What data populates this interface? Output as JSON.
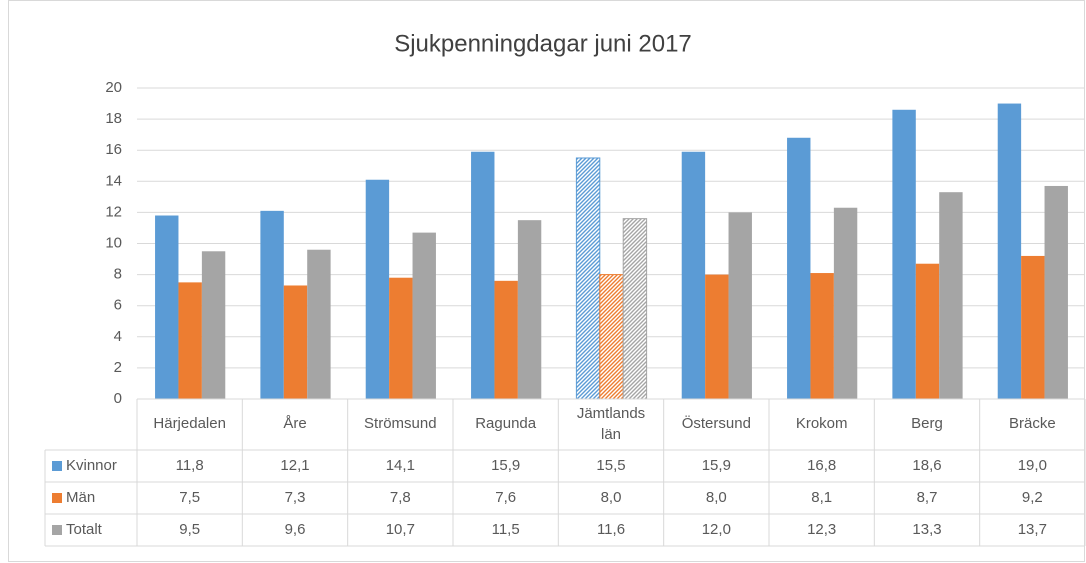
{
  "chart_data": {
    "type": "bar",
    "title": "Sjukpenningdagar juni 2017",
    "categories": [
      "Härjedalen",
      "Åre",
      "Strömsund",
      "Ragunda",
      "Jämtlands län",
      "Östersund",
      "Krokom",
      "Berg",
      "Bräcke"
    ],
    "series": [
      {
        "name": "Kvinnor",
        "color": "#5b9bd5",
        "values": [
          11.8,
          12.1,
          14.1,
          15.9,
          15.5,
          15.9,
          16.8,
          18.6,
          19.0
        ],
        "value_labels": [
          "11,8",
          "12,1",
          "14,1",
          "15,9",
          "15,5",
          "15,9",
          "16,8",
          "18,6",
          "19,0"
        ]
      },
      {
        "name": "Män",
        "color": "#ed7d31",
        "values": [
          7.5,
          7.3,
          7.8,
          7.6,
          8.0,
          8.0,
          8.1,
          8.7,
          9.2
        ],
        "value_labels": [
          "7,5",
          "7,3",
          "7,8",
          "7,6",
          "8,0",
          "8,0",
          "8,1",
          "8,7",
          "9,2"
        ]
      },
      {
        "name": "Totalt",
        "color": "#a5a5a5",
        "values": [
          9.5,
          9.6,
          10.7,
          11.5,
          11.6,
          12.0,
          12.3,
          13.3,
          13.7
        ],
        "value_labels": [
          "9,5",
          "9,6",
          "10,7",
          "11,5",
          "11,6",
          "12,0",
          "12,3",
          "13,3",
          "13,7"
        ]
      }
    ],
    "ylim": [
      0,
      20
    ],
    "yticks": [
      0,
      2,
      4,
      6,
      8,
      10,
      12,
      14,
      16,
      18,
      20
    ],
    "grid": true,
    "hatched_categories": [
      4
    ],
    "data_table": true
  }
}
